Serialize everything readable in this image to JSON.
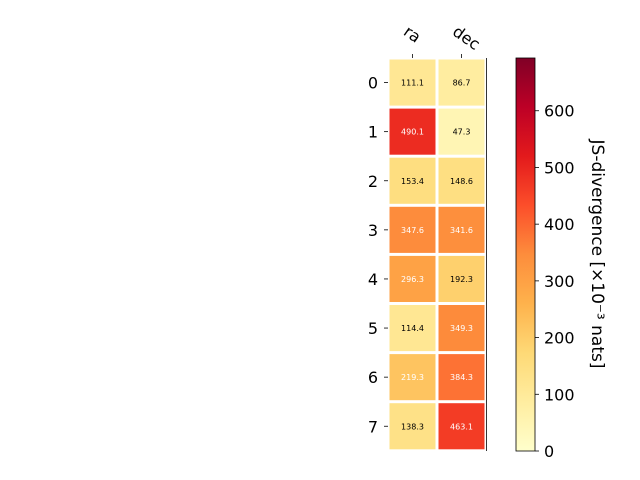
{
  "chart_data": {
    "type": "heatmap",
    "columns": [
      "ra",
      "dec"
    ],
    "rows": [
      "0",
      "1",
      "2",
      "3",
      "4",
      "5",
      "6",
      "7"
    ],
    "values": [
      [
        111.1,
        86.7
      ],
      [
        490.1,
        47.3
      ],
      [
        153.4,
        148.6
      ],
      [
        347.6,
        341.6
      ],
      [
        296.3,
        192.3
      ],
      [
        114.4,
        349.3
      ],
      [
        219.3,
        384.3
      ],
      [
        138.3,
        463.1
      ]
    ],
    "value_labels": [
      [
        "111.1",
        "86.7"
      ],
      [
        "490.1",
        "47.3"
      ],
      [
        "153.4",
        "148.6"
      ],
      [
        "347.6",
        "341.6"
      ],
      [
        "296.3",
        "192.3"
      ],
      [
        "114.4",
        "349.3"
      ],
      [
        "219.3",
        "384.3"
      ],
      [
        "138.3",
        "463.1"
      ]
    ],
    "colorbar": {
      "label": "JS-divergence [×10⁻³ nats]",
      "range": [
        0,
        693
      ],
      "ticks": [
        0,
        100,
        200,
        300,
        400,
        500,
        600
      ],
      "colormap": "YlOrRd",
      "colormap_stops": [
        "#ffffcc",
        "#ffeda0",
        "#fed976",
        "#feb24c",
        "#fd8d3c",
        "#fc4e2a",
        "#e31a1c",
        "#bd0026",
        "#800026"
      ]
    },
    "label_threshold": 200
  }
}
